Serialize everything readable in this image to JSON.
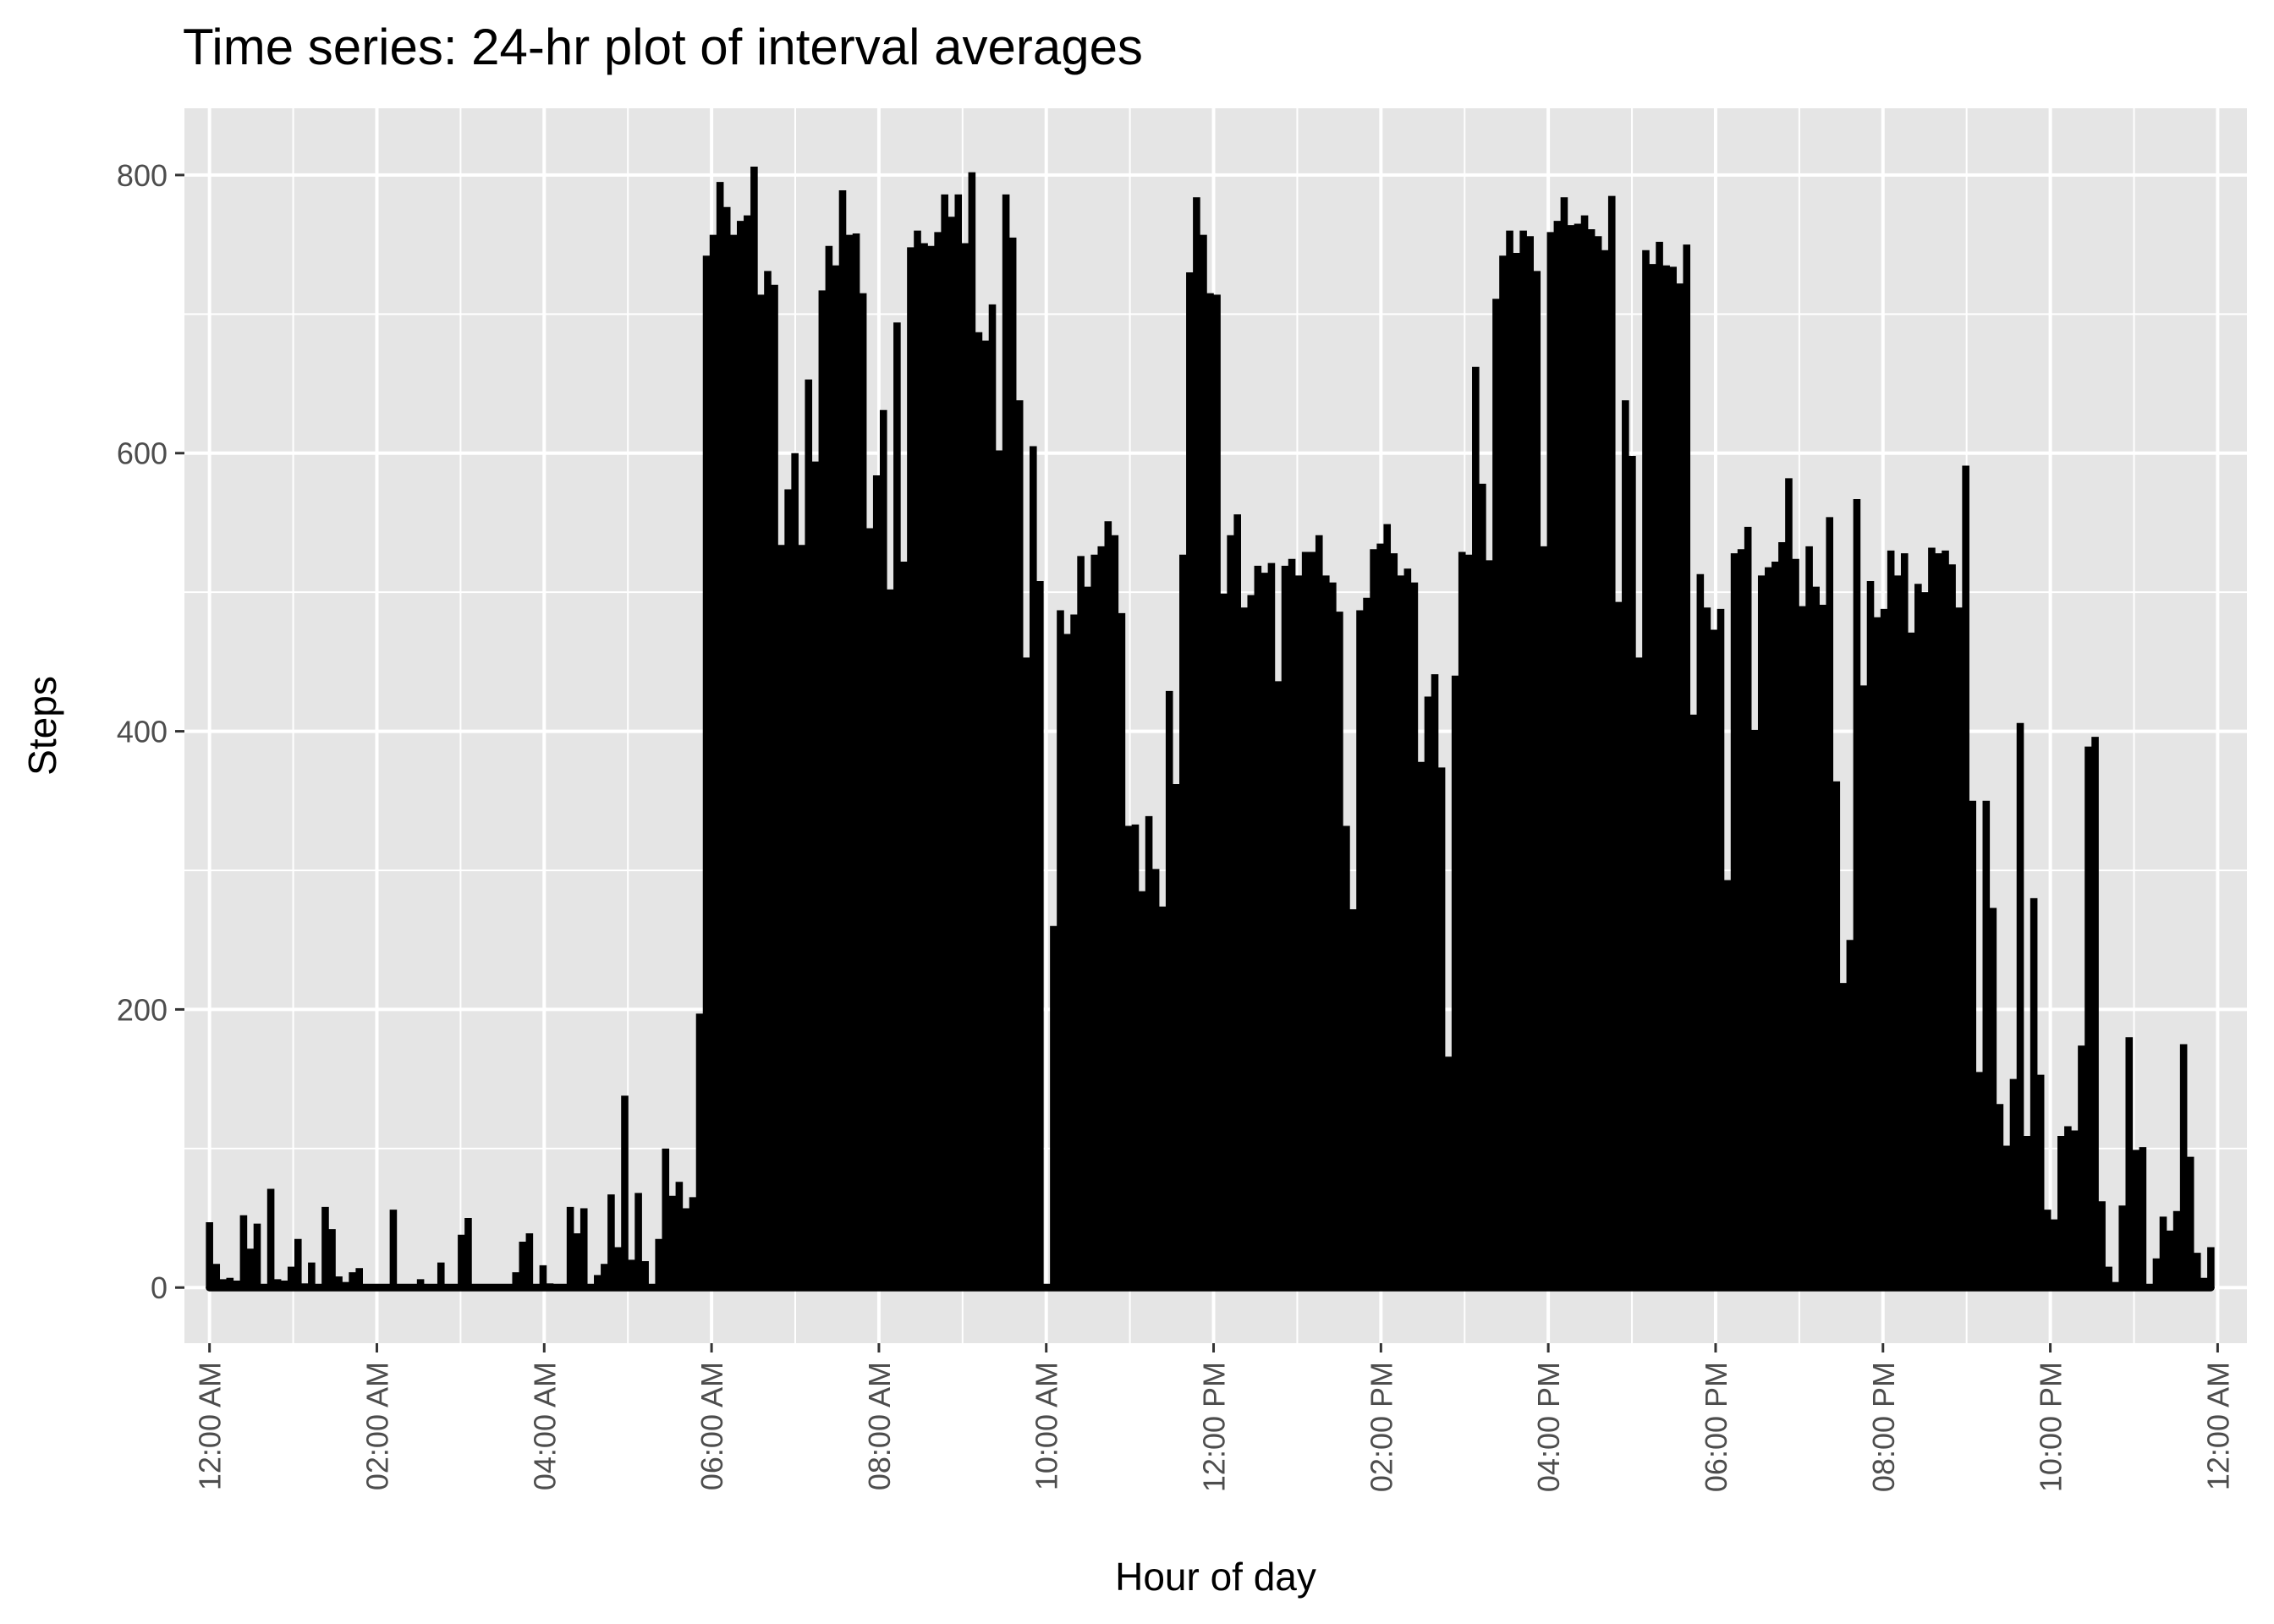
{
  "chart_data": {
    "type": "line",
    "title": "Time series: 24-hr plot of interval averages",
    "xlabel": "Hour of day",
    "ylabel": "Steps",
    "x_unit": "hour",
    "xlim": [
      -0.3,
      24.35
    ],
    "ylim": [
      -40,
      848
    ],
    "x_ticks": [
      0,
      2,
      4,
      6,
      8,
      10,
      12,
      14,
      16,
      18,
      20,
      22,
      24
    ],
    "x_tick_labels": [
      "12:00 AM",
      "02:00 AM",
      "04:00 AM",
      "06:00 AM",
      "08:00 AM",
      "10:00 AM",
      "12:00 PM",
      "02:00 PM",
      "04:00 PM",
      "06:00 PM",
      "08:00 PM",
      "10:00 PM",
      "12:00 AM"
    ],
    "y_ticks": [
      0,
      200,
      400,
      600,
      800
    ],
    "y_tick_labels": [
      "0",
      "200",
      "400",
      "600",
      "800"
    ],
    "grid": true,
    "legend": "none",
    "colors": {
      "panel": "#e5e5e5",
      "grid": "#ffffff",
      "line": "#000000",
      "tick_text": "#4d4d4d"
    },
    "series": [
      {
        "x_start": 0,
        "x_step_hours": 0.08333,
        "values": [
          47,
          17,
          6,
          7,
          5,
          52,
          28,
          46,
          0,
          71,
          6,
          5,
          15,
          35,
          3,
          18,
          0,
          58,
          42,
          8,
          4,
          11,
          14,
          0,
          0,
          0,
          0,
          56,
          0,
          0,
          0,
          6,
          0,
          0,
          18,
          0,
          0,
          38,
          50,
          0,
          0,
          0,
          0,
          0,
          0,
          11,
          33,
          39,
          0,
          16,
          3,
          0,
          0,
          58,
          39,
          57,
          0,
          9,
          17,
          67,
          29,
          138,
          20,
          68,
          19,
          0,
          35,
          100,
          66,
          76,
          57,
          65,
          197,
          742,
          757,
          795,
          777,
          757,
          767,
          771,
          806,
          714,
          731,
          721,
          534,
          574,
          600,
          534,
          653,
          594,
          717,
          749,
          735,
          789,
          757,
          758,
          715,
          546,
          584,
          631,
          502,
          694,
          522,
          748,
          760,
          751,
          749,
          759,
          786,
          770,
          786,
          751,
          802,
          687,
          681,
          707,
          602,
          786,
          755,
          638,
          453,
          605,
          508,
          0,
          260,
          487,
          470,
          484,
          526,
          504,
          527,
          533,
          551,
          541,
          485,
          332,
          333,
          285,
          339,
          301,
          274,
          429,
          362,
          527,
          730,
          784,
          757,
          715,
          714,
          499,
          541,
          556,
          489,
          498,
          519,
          514,
          521,
          436,
          519,
          524,
          512,
          529,
          529,
          541,
          512,
          507,
          486,
          332,
          272,
          487,
          496,
          531,
          535,
          549,
          528,
          512,
          517,
          507,
          378,
          425,
          441,
          374,
          166,
          440,
          529,
          527,
          662,
          578,
          523,
          711,
          742,
          760,
          744,
          760,
          756,
          731,
          533,
          759,
          767,
          784,
          764,
          765,
          771,
          761,
          756,
          746,
          785,
          493,
          638,
          598,
          453,
          746,
          736,
          752,
          735,
          734,
          722,
          750,
          412,
          513,
          489,
          473,
          488,
          293,
          528,
          531,
          547,
          401,
          512,
          518,
          522,
          536,
          582,
          524,
          490,
          533,
          504,
          491,
          554,
          364,
          219,
          250,
          567,
          433,
          508,
          482,
          488,
          530,
          512,
          528,
          471,
          506,
          500,
          532,
          528,
          530,
          520,
          489,
          591,
          350,
          155,
          350,
          273,
          132,
          102,
          150,
          406,
          109,
          280,
          153,
          56,
          49,
          109,
          116,
          113,
          174,
          389,
          396,
          62,
          15,
          4,
          59,
          180,
          99,
          101,
          0,
          21,
          51,
          41,
          55,
          175,
          94,
          25,
          7,
          29
        ]
      }
    ]
  }
}
